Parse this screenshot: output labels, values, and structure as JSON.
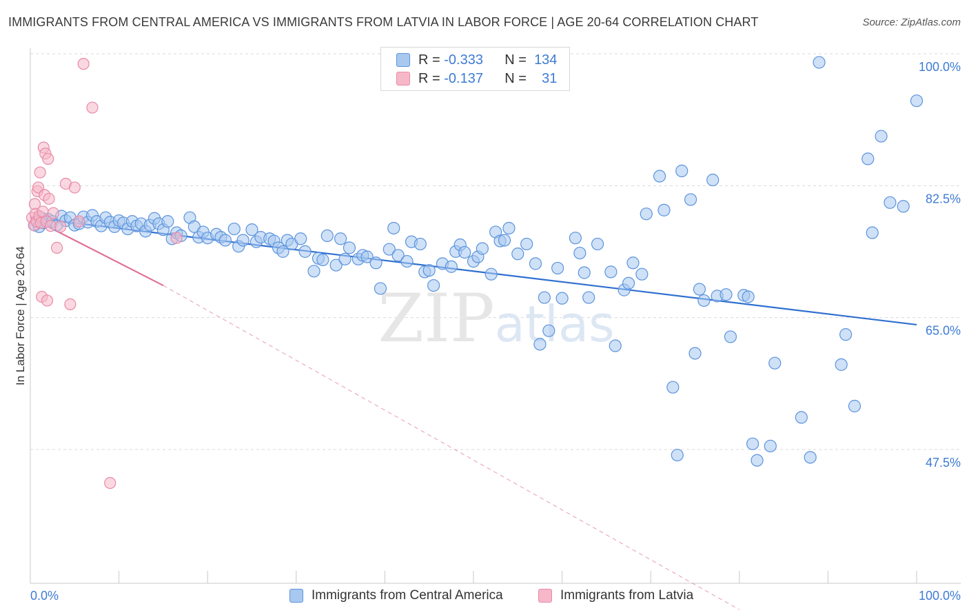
{
  "header": {
    "title": "IMMIGRANTS FROM CENTRAL AMERICA VS IMMIGRANTS FROM LATVIA IN LABOR FORCE | AGE 20-64 CORRELATION CHART",
    "source": "Source: ZipAtlas.com"
  },
  "legend": {
    "rows": [
      {
        "r_label": "R =",
        "r_value": "-0.333",
        "n_label": "N =",
        "n_value": "134"
      },
      {
        "r_label": "R =",
        "r_value": "-0.137",
        "n_label": "N =",
        "n_value": "31"
      }
    ]
  },
  "colors": {
    "blue_fill": "#a8c8f0",
    "blue_stroke": "#5b93dc",
    "blue_line": "#2f6fd0",
    "pink_fill": "#f6b8c8",
    "pink_stroke": "#e889a6",
    "pink_line": "#e0709a",
    "grid": "#d9d9d9",
    "tick_text": "#3d7bd4"
  },
  "chart_data": {
    "type": "scatter",
    "title": "IMMIGRANTS FROM CENTRAL AMERICA VS IMMIGRANTS FROM LATVIA IN LABOR FORCE | AGE 20-64 CORRELATION CHART",
    "xlabel": "",
    "ylabel": "In Labor Force | Age 20-64",
    "xlim": [
      0,
      100
    ],
    "ylim": [
      28,
      102
    ],
    "x_tick_labels": [
      "0.0%",
      "100.0%"
    ],
    "y_ticks": [
      47.5,
      65.0,
      82.5,
      100.0
    ],
    "y_tick_labels": [
      "47.5%",
      "65.0%",
      "82.5%",
      "100.0%"
    ],
    "grid": true,
    "legend_position": "top-center",
    "series": [
      {
        "name": "Immigrants from Central America",
        "R": -0.333,
        "N": 134,
        "trend": {
          "x0": 0,
          "y0": 80.0,
          "x1": 100,
          "y1": 65.8
        },
        "points": [
          [
            0.5,
            79.0
          ],
          [
            0.8,
            79.5
          ],
          [
            1.0,
            78.8
          ],
          [
            1.2,
            80.0
          ],
          [
            1.5,
            79.3
          ],
          [
            2.0,
            79.8
          ],
          [
            2.5,
            79.5
          ],
          [
            3.0,
            79.0
          ],
          [
            3.5,
            80.2
          ],
          [
            4.0,
            79.6
          ],
          [
            4.5,
            80.0
          ],
          [
            5.0,
            79.0
          ],
          [
            5.5,
            79.2
          ],
          [
            6.0,
            80.1
          ],
          [
            6.5,
            79.4
          ],
          [
            7.0,
            80.3
          ],
          [
            7.5,
            79.5
          ],
          [
            8.0,
            78.9
          ],
          [
            8.5,
            80.0
          ],
          [
            9.0,
            79.4
          ],
          [
            9.5,
            78.8
          ],
          [
            10.0,
            79.6
          ],
          [
            10.5,
            79.3
          ],
          [
            11.0,
            78.5
          ],
          [
            11.5,
            79.5
          ],
          [
            12.0,
            78.9
          ],
          [
            12.5,
            79.2
          ],
          [
            13.0,
            78.2
          ],
          [
            13.5,
            79.0
          ],
          [
            14.0,
            79.9
          ],
          [
            14.5,
            79.2
          ],
          [
            15.0,
            78.4
          ],
          [
            15.5,
            79.5
          ],
          [
            16.0,
            77.2
          ],
          [
            16.5,
            78.0
          ],
          [
            17.0,
            77.6
          ],
          [
            18.0,
            80.0
          ],
          [
            18.5,
            78.8
          ],
          [
            19.0,
            77.4
          ],
          [
            19.5,
            78.1
          ],
          [
            20.0,
            77.3
          ],
          [
            21.0,
            77.8
          ],
          [
            21.5,
            77.4
          ],
          [
            22.0,
            77.0
          ],
          [
            23.0,
            78.5
          ],
          [
            23.5,
            76.2
          ],
          [
            24.0,
            77.0
          ],
          [
            25.0,
            78.4
          ],
          [
            25.5,
            76.8
          ],
          [
            26.0,
            77.4
          ],
          [
            27.0,
            77.2
          ],
          [
            27.5,
            76.9
          ],
          [
            28.0,
            76.0
          ],
          [
            28.5,
            75.5
          ],
          [
            29.0,
            77.0
          ],
          [
            29.5,
            76.5
          ],
          [
            30.5,
            77.2
          ],
          [
            31.0,
            75.5
          ],
          [
            32.0,
            72.9
          ],
          [
            32.5,
            74.6
          ],
          [
            33.0,
            74.4
          ],
          [
            33.5,
            77.6
          ],
          [
            34.5,
            73.7
          ],
          [
            35.0,
            77.2
          ],
          [
            35.5,
            74.5
          ],
          [
            36.0,
            76.0
          ],
          [
            37.0,
            74.5
          ],
          [
            37.5,
            75.0
          ],
          [
            38.0,
            74.8
          ],
          [
            39.0,
            74.0
          ],
          [
            39.5,
            70.6
          ],
          [
            40.5,
            75.8
          ],
          [
            41.0,
            78.6
          ],
          [
            41.5,
            75.0
          ],
          [
            42.5,
            74.2
          ],
          [
            43.0,
            76.8
          ],
          [
            44.0,
            76.5
          ],
          [
            44.5,
            72.8
          ],
          [
            45.0,
            73.0
          ],
          [
            45.5,
            71.0
          ],
          [
            46.5,
            73.9
          ],
          [
            47.5,
            73.5
          ],
          [
            48.0,
            75.5
          ],
          [
            48.5,
            76.4
          ],
          [
            49.0,
            75.4
          ],
          [
            50.0,
            74.2
          ],
          [
            50.5,
            74.8
          ],
          [
            51.0,
            75.9
          ],
          [
            52.0,
            72.5
          ],
          [
            52.5,
            78.1
          ],
          [
            53.0,
            76.9
          ],
          [
            53.5,
            77.0
          ],
          [
            54.0,
            78.6
          ],
          [
            55.0,
            75.2
          ],
          [
            56.0,
            76.5
          ],
          [
            57.0,
            73.9
          ],
          [
            57.5,
            63.2
          ],
          [
            58.0,
            69.4
          ],
          [
            58.5,
            65.0
          ],
          [
            59.5,
            73.3
          ],
          [
            60.0,
            69.3
          ],
          [
            61.5,
            77.3
          ],
          [
            62.0,
            75.3
          ],
          [
            62.5,
            72.7
          ],
          [
            63.0,
            69.4
          ],
          [
            64.0,
            76.5
          ],
          [
            65.5,
            72.8
          ],
          [
            66.0,
            63.0
          ],
          [
            67.0,
            70.4
          ],
          [
            67.5,
            71.3
          ],
          [
            68.0,
            74.0
          ],
          [
            69.0,
            72.5
          ],
          [
            69.5,
            80.5
          ],
          [
            71.0,
            85.5
          ],
          [
            71.5,
            81.0
          ],
          [
            72.5,
            57.5
          ],
          [
            73.0,
            48.5
          ],
          [
            73.5,
            86.2
          ],
          [
            74.5,
            82.4
          ],
          [
            75.0,
            62.0
          ],
          [
            75.5,
            70.5
          ],
          [
            76.0,
            69.0
          ],
          [
            77.0,
            85.0
          ],
          [
            77.5,
            69.6
          ],
          [
            78.5,
            69.8
          ],
          [
            79.0,
            64.2
          ],
          [
            80.5,
            69.7
          ],
          [
            81.0,
            69.5
          ],
          [
            81.5,
            50.0
          ],
          [
            82.0,
            47.8
          ],
          [
            83.5,
            49.7
          ],
          [
            84.0,
            60.7
          ],
          [
            87.0,
            53.5
          ],
          [
            88.0,
            48.2
          ],
          [
            89.0,
            100.6
          ],
          [
            91.5,
            60.5
          ],
          [
            92.0,
            64.5
          ],
          [
            93.0,
            55.0
          ],
          [
            94.5,
            87.8
          ],
          [
            95.0,
            78.0
          ],
          [
            96.0,
            90.8
          ],
          [
            97.0,
            82.0
          ],
          [
            98.5,
            81.5
          ],
          [
            100.0,
            95.5
          ]
        ]
      },
      {
        "name": "Immigrants from Latvia",
        "R": -0.137,
        "N": 31,
        "trend": {
          "x0": 0,
          "y0": 80.0,
          "x1": 15,
          "y1": 71.0
        },
        "trend_extended": {
          "x0": 15,
          "y0": 71.0,
          "x1": 80,
          "y1": 28.0
        },
        "points": [
          [
            0.2,
            80.0
          ],
          [
            0.4,
            79.0
          ],
          [
            0.5,
            81.8
          ],
          [
            0.6,
            80.5
          ],
          [
            0.7,
            79.5
          ],
          [
            0.8,
            83.5
          ],
          [
            0.9,
            84.0
          ],
          [
            1.0,
            80.2
          ],
          [
            1.1,
            86.0
          ],
          [
            1.2,
            79.3
          ],
          [
            1.3,
            69.5
          ],
          [
            1.4,
            80.8
          ],
          [
            1.5,
            89.3
          ],
          [
            1.6,
            83.0
          ],
          [
            1.7,
            88.5
          ],
          [
            1.8,
            79.5
          ],
          [
            1.9,
            69.0
          ],
          [
            2.0,
            87.8
          ],
          [
            2.1,
            82.5
          ],
          [
            2.3,
            78.9
          ],
          [
            2.6,
            80.6
          ],
          [
            3.0,
            76.0
          ],
          [
            3.4,
            78.8
          ],
          [
            4.0,
            84.5
          ],
          [
            4.5,
            68.5
          ],
          [
            5.0,
            84.0
          ],
          [
            5.5,
            79.5
          ],
          [
            6.0,
            100.4
          ],
          [
            7.0,
            94.6
          ],
          [
            9.0,
            44.8
          ],
          [
            16.5,
            77.3
          ]
        ]
      }
    ]
  },
  "bottom_legend": [
    {
      "label": "Immigrants from Central America"
    },
    {
      "label": "Immigrants from Latvia"
    }
  ]
}
